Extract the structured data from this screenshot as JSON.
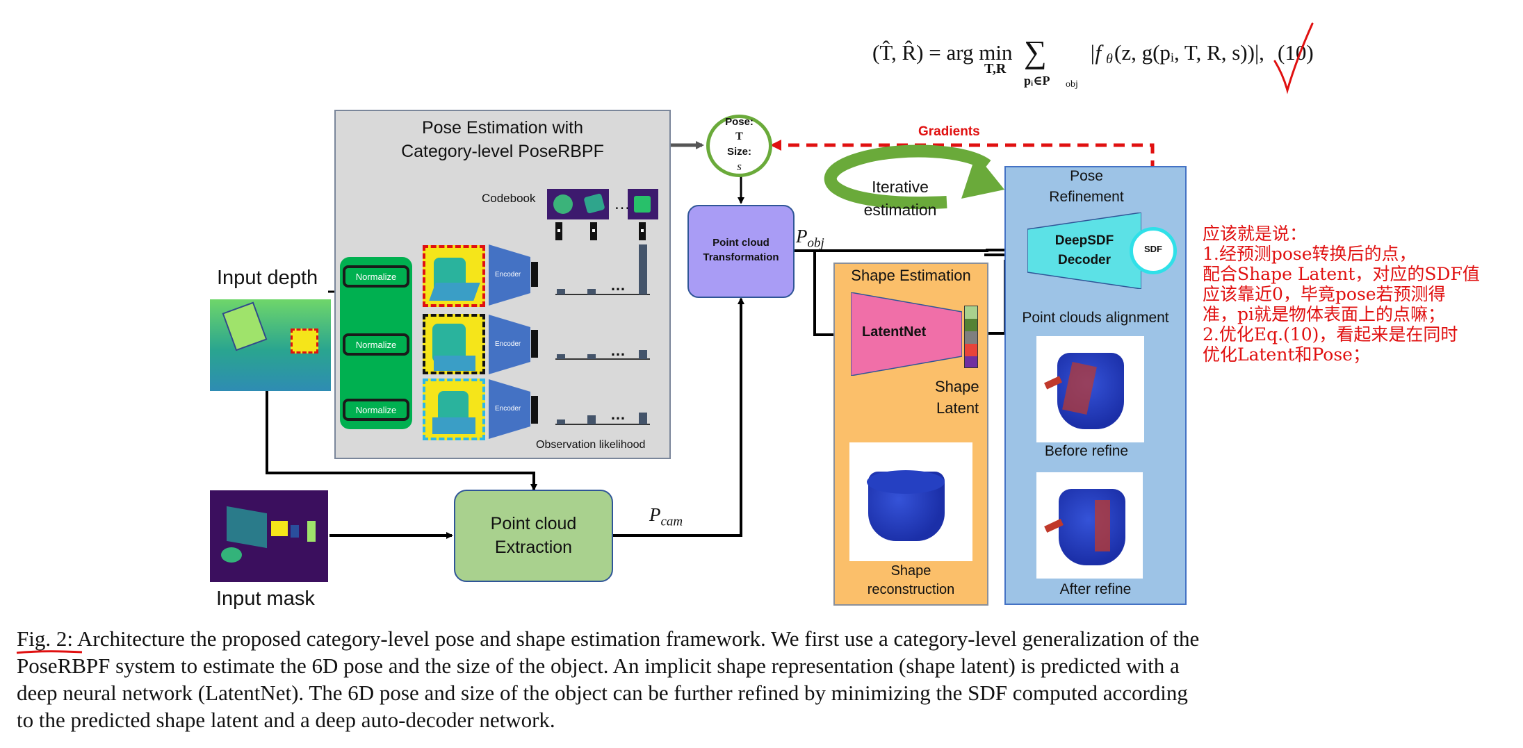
{
  "equation": {
    "lhs": "(T̂, R̂) = arg min",
    "min_sub": "T,R",
    "sum_sub": "pᵢ∈P",
    "sum_sub2": "obj",
    "body": "|f",
    "theta": "θ",
    "args": "(z, g(pᵢ, T, R, s))|,",
    "number": "(10)"
  },
  "pose_panel": {
    "title1": "Pose Estimation with",
    "title2": "Category-level PoseRBPF",
    "codebook": "Codebook",
    "normalize": "Normalize",
    "encoder": "Encoder",
    "dots": "…",
    "obs_likelihood": "Observation likelihood"
  },
  "input_depth": "Input depth",
  "input_mask": "Input mask",
  "pose_node": {
    "pose": "Pose:",
    "t": "T",
    "size": "Size:",
    "s": "s"
  },
  "gradients": "Gradients",
  "iterative": {
    "line1": "Iterative",
    "line2": "estimation"
  },
  "pct": {
    "line1": "Point cloud",
    "line2": "Transformation"
  },
  "p_obj": {
    "p": "P",
    "sub": "obj"
  },
  "p_cam": {
    "p": "P",
    "sub": "cam"
  },
  "extraction": {
    "line1": "Point cloud",
    "line2": "Extraction"
  },
  "shape_panel": {
    "title": "Shape Estimation",
    "latentnet": "LatentNet",
    "shape_latent1": "Shape",
    "shape_latent2": "Latent",
    "recon1": "Shape",
    "recon2": "reconstruction"
  },
  "refine_panel": {
    "title1": "Pose",
    "title2": "Refinement",
    "decoder1": "DeepSDF",
    "decoder2": "Decoder",
    "sdf": "SDF",
    "alignment": "Point clouds alignment",
    "before": "Before refine",
    "after": "After refine"
  },
  "annotation": {
    "check_mark": "✓",
    "lines": [
      "应该就是说：",
      "1.经预测pose转换后的点，",
      "配合Shape Latent，对应的SDF值",
      "应该靠近0，毕竟pose若预测得",
      "准，pi就是物体表面上的点嘛；",
      "2.优化Eq.(10)，看起来是在同时",
      "优化Latent和Pose；"
    ]
  },
  "caption": {
    "fig": "Fig. 2:",
    "lines": [
      "Architecture the proposed category-level pose and shape estimation framework. We first use a category-level generalization of the",
      "PoseRBPF system to estimate the 6D pose and the size of the object. An implicit shape representation (shape latent) is predicted with a",
      "deep neural network (LatentNet). The 6D pose and size of the object can be further refined by minimizing the SDF computed according",
      "to the predicted shape latent and a deep auto-decoder network."
    ]
  },
  "colors": {
    "pose_panel_bg": "#d9d9d9",
    "normalize_green": "#00b050",
    "encoder_blue": "#4472c4",
    "pct_purple": "#a99cf5",
    "extraction_green": "#a9d18e",
    "shape_orange": "#fbbf6a",
    "latentnet_pink": "#f06fa8",
    "refine_blue": "#9dc3e6",
    "decoder_cyan": "#5ce1e6",
    "gradient_red": "#e01010",
    "iterative_arrow_green": "#6aaa3a"
  }
}
